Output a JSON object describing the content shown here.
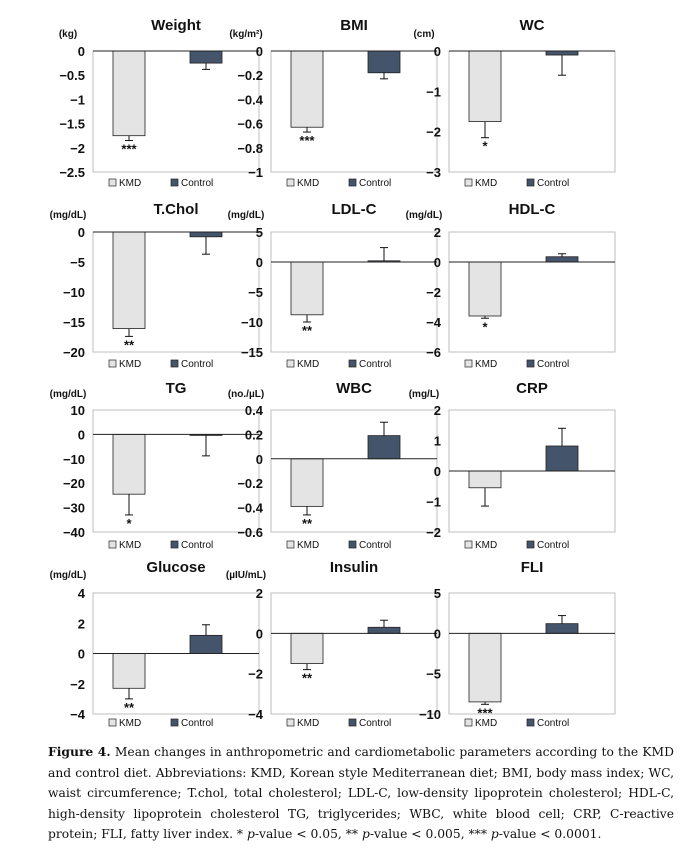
{
  "colors": {
    "kmd": "#e4e4e4",
    "control": "#44546a",
    "border": "#222222",
    "frame": "#bfbfbf"
  },
  "legend": {
    "kmd": "KMD",
    "control": "Control"
  },
  "chart_data": [
    {
      "type": "bar",
      "title": "Weight",
      "ylabel": "(kg)",
      "ticks": [
        "0",
        "−0.5",
        "−1",
        "−1.5",
        "−2",
        "−2.5"
      ],
      "ylim": [
        -2.5,
        0
      ],
      "categories": [
        "KMD",
        "Control"
      ],
      "values": [
        -1.75,
        -0.25
      ],
      "errors": [
        0.1,
        0.13
      ],
      "annotations": [
        "***",
        ""
      ]
    },
    {
      "type": "bar",
      "title": "BMI",
      "ylabel": "(kg/m²)",
      "ticks": [
        "0",
        "−0.2",
        "−0.4",
        "−0.6",
        "−0.8",
        "−1"
      ],
      "ylim": [
        -1,
        0
      ],
      "categories": [
        "KMD",
        "Control"
      ],
      "values": [
        -0.63,
        -0.18
      ],
      "errors": [
        0.04,
        0.05
      ],
      "annotations": [
        "***",
        ""
      ]
    },
    {
      "type": "bar",
      "title": "WC",
      "ylabel": "(cm)",
      "ticks": [
        "0",
        "−1",
        "−2",
        "−3"
      ],
      "ylim": [
        -3,
        0
      ],
      "categories": [
        "KMD",
        "Control"
      ],
      "values": [
        -1.75,
        -0.1
      ],
      "errors": [
        0.4,
        0.5
      ],
      "annotations": [
        "*",
        ""
      ]
    },
    {
      "type": "bar",
      "title": "T.Chol",
      "ylabel": "(mg/dL)",
      "ticks": [
        "0",
        "−5",
        "−10",
        "−15",
        "−20"
      ],
      "ylim": [
        -20,
        0
      ],
      "categories": [
        "KMD",
        "Control"
      ],
      "values": [
        -16.1,
        -0.8
      ],
      "errors": [
        1.3,
        2.9
      ],
      "annotations": [
        "**",
        ""
      ]
    },
    {
      "type": "bar",
      "title": "LDL-C",
      "ylabel": "(mg/dL)",
      "ticks": [
        "5",
        "0",
        "−5",
        "−10",
        "−15"
      ],
      "ylim": [
        -15,
        5
      ],
      "categories": [
        "KMD",
        "Control"
      ],
      "values": [
        -8.8,
        0.2
      ],
      "errors": [
        1.2,
        2.2
      ],
      "annotations": [
        "**",
        ""
      ]
    },
    {
      "type": "bar",
      "title": "HDL-C",
      "ylabel": "(mg/dL)",
      "ticks": [
        "2",
        "0",
        "−2",
        "−4",
        "−6"
      ],
      "ylim": [
        -6,
        2
      ],
      "categories": [
        "KMD",
        "Control"
      ],
      "values": [
        -3.6,
        0.35
      ],
      "errors": [
        0.15,
        0.2
      ],
      "annotations": [
        "*",
        ""
      ]
    },
    {
      "type": "bar",
      "title": "TG",
      "ylabel": "(mg/dL)",
      "ticks": [
        "10",
        "0",
        "−10",
        "−20",
        "−30",
        "−40"
      ],
      "ylim": [
        -40,
        10
      ],
      "categories": [
        "KMD",
        "Control"
      ],
      "values": [
        -24.5,
        -0.3
      ],
      "errors": [
        8.5,
        8.5
      ],
      "annotations": [
        "*",
        ""
      ]
    },
    {
      "type": "bar",
      "title": "WBC",
      "ylabel": "(no./µL)",
      "ticks": [
        "0.4",
        "0.2",
        "0",
        "−0.2",
        "−0.4",
        "−0.6"
      ],
      "ylim": [
        -0.6,
        0.4
      ],
      "categories": [
        "KMD",
        "Control"
      ],
      "values": [
        -0.39,
        0.19
      ],
      "errors": [
        0.07,
        0.11
      ],
      "annotations": [
        "**",
        ""
      ]
    },
    {
      "type": "bar",
      "title": "CRP",
      "ylabel": "(mg/L)",
      "ticks": [
        "2",
        "1",
        "0",
        "−1",
        "−2"
      ],
      "ylim": [
        -2,
        2
      ],
      "categories": [
        "KMD",
        "Control"
      ],
      "values": [
        -0.55,
        0.82
      ],
      "errors": [
        0.6,
        0.58
      ],
      "annotations": [
        "",
        ""
      ]
    },
    {
      "type": "bar",
      "title": "Glucose",
      "ylabel": "(mg/dL)",
      "ticks": [
        "4",
        "2",
        "0",
        "−2",
        "−4"
      ],
      "ylim": [
        -4,
        4
      ],
      "categories": [
        "KMD",
        "Control"
      ],
      "values": [
        -2.3,
        1.2
      ],
      "errors": [
        0.7,
        0.7
      ],
      "annotations": [
        "**",
        ""
      ]
    },
    {
      "type": "bar",
      "title": "Insulin",
      "ylabel": "(µIU/mL)",
      "ticks": [
        "2",
        "0",
        "−2",
        "−4"
      ],
      "ylim": [
        -4,
        2
      ],
      "categories": [
        "KMD",
        "Control"
      ],
      "values": [
        -1.5,
        0.3
      ],
      "errors": [
        0.3,
        0.35
      ],
      "annotations": [
        "**",
        ""
      ]
    },
    {
      "type": "bar",
      "title": "FLI",
      "ylabel": "",
      "ticks": [
        "5",
        "0",
        "−5",
        "−10"
      ],
      "ylim": [
        -10,
        5
      ],
      "categories": [
        "KMD",
        "Control"
      ],
      "values": [
        -8.5,
        1.2
      ],
      "errors": [
        0.3,
        1.0
      ],
      "annotations": [
        "***",
        ""
      ]
    }
  ],
  "caption": {
    "label": "Figure 4.",
    "part1": " Mean changes in anthropometric and cardiometabolic parameters according to the KMD and control diet. Abbreviations: KMD, Korean style Mediterranean diet; BMI, body mass index; WC, waist circumference; T.chol, total cholesterol; LDL-C, low-density lipoprotein cholesterol; HDL-C, high-density lipoprotein cholesterol TG, triglycerides; WBC, white blood cell; CRP, C-reactive protein; FLI, fatty liver index. * ",
    "p1": "p",
    "part2": "-value < 0.05, ** ",
    "p2": "p",
    "part3": "-value < 0.005, *** ",
    "p3": "p",
    "part4": "-value < 0.0001."
  }
}
